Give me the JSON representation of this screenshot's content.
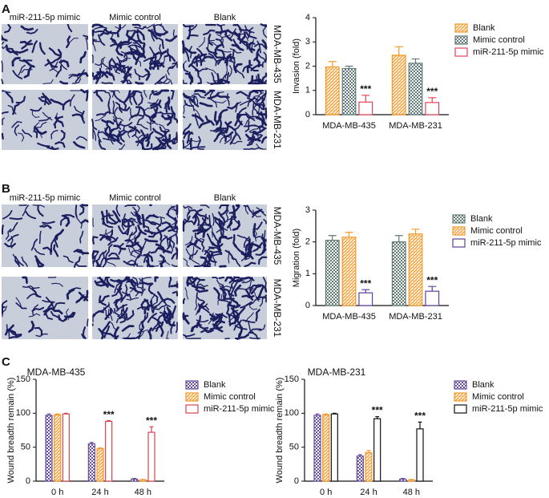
{
  "panels": {
    "labels": [
      "A",
      "B",
      "C"
    ]
  },
  "images": [
    {
      "columns": [
        "miR-211-5p mimic",
        "Mimic control",
        "Blank"
      ],
      "rows": [
        "MDA-MB-435",
        "MDA-MB-231"
      ]
    },
    {
      "columns": [
        "miR-211-5p mimic",
        "Mimic control",
        "Blank"
      ],
      "rows": [
        "MDA-MB-435",
        "MDA-MB-231"
      ]
    }
  ],
  "chart_data": [
    {
      "type": "bar",
      "ylabel": "Invasion (fold)",
      "categories": [
        "MDA-MB-435",
        "MDA-MB-231"
      ],
      "ylim": [
        0,
        4
      ],
      "yticks": [
        0,
        1,
        2,
        3,
        4
      ],
      "series": [
        {
          "name": "Blank",
          "color": "#f39a2b",
          "pattern": "hatch",
          "values": [
            1.97,
            2.45
          ],
          "errors": [
            0.22,
            0.35
          ]
        },
        {
          "name": "Mimic control",
          "color": "#5f7a78",
          "pattern": "cross",
          "values": [
            1.9,
            2.12
          ],
          "errors": [
            0.1,
            0.18
          ]
        },
        {
          "name": "miR-211-5p mimic",
          "color": "#e0435a",
          "pattern": "none",
          "values": [
            0.52,
            0.5
          ],
          "errors": [
            0.28,
            0.2
          ],
          "annotations": [
            "***",
            "***"
          ]
        }
      ]
    },
    {
      "type": "bar",
      "ylabel": "Migration (fold)",
      "categories": [
        "MDA-MB-435",
        "MDA-MB-231"
      ],
      "ylim": [
        0,
        3
      ],
      "yticks": [
        0,
        1,
        2,
        3
      ],
      "series": [
        {
          "name": "Blank",
          "color": "#5f7a70",
          "pattern": "cross",
          "values": [
            2.05,
            2.0
          ],
          "errors": [
            0.15,
            0.2
          ]
        },
        {
          "name": "Mimic control",
          "color": "#f39a2b",
          "pattern": "hatch",
          "values": [
            2.15,
            2.25
          ],
          "errors": [
            0.15,
            0.15
          ]
        },
        {
          "name": "miR-211-5p mimic",
          "color": "#5b3f9a",
          "pattern": "none",
          "values": [
            0.4,
            0.45
          ],
          "errors": [
            0.1,
            0.15
          ],
          "annotations": [
            "***",
            "***"
          ]
        }
      ]
    },
    {
      "type": "bar",
      "title": "MDA-MB-435",
      "ylabel": "Wound breadth remain (%)",
      "categories": [
        "0 h",
        "24 h",
        "48 h"
      ],
      "ylim": [
        0,
        150
      ],
      "yticks": [
        0,
        50,
        100,
        150
      ],
      "series": [
        {
          "name": "Blank",
          "color": "#6a4f9e",
          "pattern": "cross",
          "values": [
            97,
            55,
            3
          ],
          "errors": [
            2,
            2,
            1
          ]
        },
        {
          "name": "Mimic control",
          "color": "#f39a2b",
          "pattern": "hatch",
          "values": [
            98,
            48,
            2
          ],
          "errors": [
            1,
            1,
            0.5
          ]
        },
        {
          "name": "miR-211-5p mimic",
          "color": "#d9434f",
          "pattern": "none",
          "values": [
            99,
            88,
            72
          ],
          "errors": [
            1,
            1,
            8
          ],
          "annotations": [
            null,
            "***",
            "***"
          ]
        }
      ]
    },
    {
      "type": "bar",
      "title": "MDA-MB-231",
      "ylabel": "Wound breadth remain (%)",
      "categories": [
        "0 h",
        "24 h",
        "48 h"
      ],
      "ylim": [
        0,
        150
      ],
      "yticks": [
        0,
        50,
        100,
        150
      ],
      "series": [
        {
          "name": "Blank",
          "color": "#6a4f9e",
          "pattern": "cross",
          "values": [
            97,
            37,
            3
          ],
          "errors": [
            2,
            2,
            1
          ]
        },
        {
          "name": "Mimic control",
          "color": "#f39a2b",
          "pattern": "hatch",
          "values": [
            98,
            42,
            2
          ],
          "errors": [
            1,
            3,
            0.5
          ]
        },
        {
          "name": "miR-211-5p mimic",
          "color": "#111111",
          "pattern": "none",
          "values": [
            99,
            92,
            77
          ],
          "errors": [
            1,
            3,
            10
          ],
          "annotations": [
            null,
            "***",
            "***"
          ]
        }
      ]
    }
  ]
}
